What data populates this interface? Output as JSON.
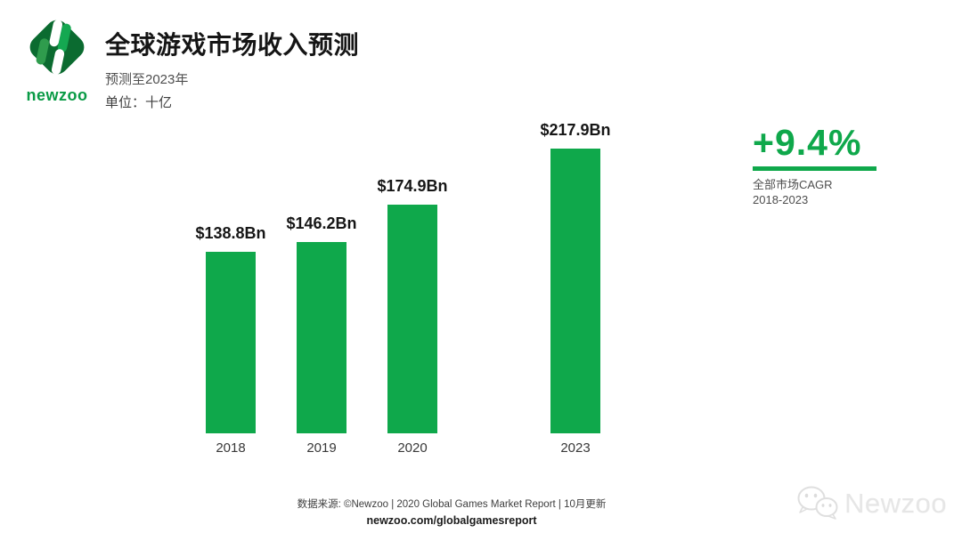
{
  "header": {
    "logo": {
      "wordmark": "newzoo",
      "icon": "newzoo-diamond-logo"
    },
    "title": "全球游戏市场收入预测",
    "subtitle": "预测至2023年",
    "unit_label": "单位：十亿"
  },
  "chart_data": {
    "type": "bar",
    "title": "全球游戏市场收入预测",
    "categories": [
      "2018",
      "2019",
      "2020",
      "2023"
    ],
    "values": [
      138.8,
      146.2,
      174.9,
      217.9
    ],
    "value_labels": [
      "$138.8Bn",
      "$146.2Bn",
      "$174.9Bn",
      "$217.9Bn"
    ],
    "xlabel": "",
    "ylabel": "单位：十亿",
    "ylim": [
      0,
      230
    ],
    "grid": false,
    "legend": "none",
    "bar_color": "#0FA84B"
  },
  "cagr": {
    "value": "+9.4%",
    "line1": "全部市场CAGR",
    "line2": "2018-2023",
    "color": "#0FA84B"
  },
  "footer": {
    "source": "数据来源: ©Newzoo | 2020 Global Games Market Report | 10月更新",
    "url": "newzoo.com/globalgamesreport"
  },
  "watermark": {
    "text": "Newzoo",
    "icon": "wechat-icon"
  },
  "colors": {
    "bar_green": "#0FA84B",
    "accent_green": "#0FA84B",
    "logo_dark_green": "#0B6B30",
    "logo_bright_green": "#14A851",
    "title_text": "#151515",
    "muted_text": "#4E4E4E",
    "watermark_gray": "#E6E6E6"
  }
}
